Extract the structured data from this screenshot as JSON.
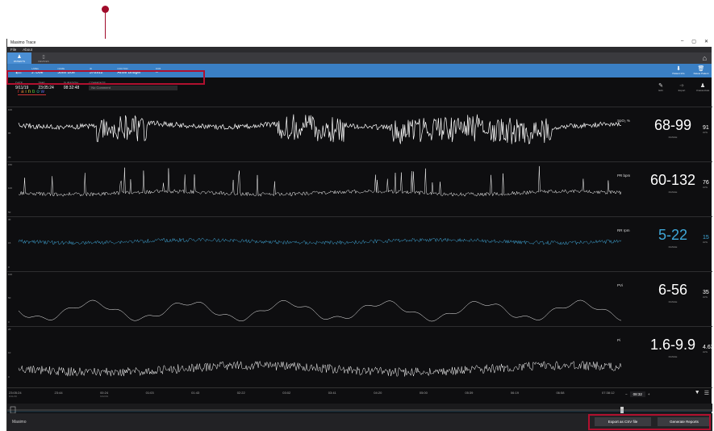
{
  "window": {
    "title": "Masimo Trace",
    "minimize": "–",
    "maximize": "▢",
    "close": "✕"
  },
  "menu": [
    "File",
    "About"
  ],
  "nav": {
    "tabs": [
      {
        "label": "PATIENTS",
        "icon": "person-icon"
      },
      {
        "label": "DEVICES",
        "icon": "device-icon"
      }
    ],
    "home_icon": "home-icon"
  },
  "patient": {
    "back_icon": "arrow-left-icon",
    "fields": [
      {
        "label": "LABEL",
        "value": "J. Doe"
      },
      {
        "label": "NAME",
        "value": "John Doe"
      },
      {
        "label": "ID",
        "value": "378912"
      },
      {
        "label": "DOCTOR",
        "value": "Anne Bridger"
      },
      {
        "label": "DOB",
        "value": "--"
      }
    ],
    "buttons": [
      {
        "label": "Patient Info",
        "icon": "download-icon"
      },
      {
        "label": "Delete Patient",
        "icon": "trash-icon"
      }
    ]
  },
  "session": {
    "fields": [
      {
        "label": "DATE",
        "value": "9/11/19"
      },
      {
        "label": "TIME",
        "value": "23:05:24"
      },
      {
        "label": "DURATION",
        "value": "08:32:48"
      }
    ],
    "comments_label": "COMMENTS",
    "comments_placeholder": "No Comment",
    "brand": "rainbow",
    "tools": [
      {
        "label": "Edit",
        "icon": "pencil-icon"
      },
      {
        "label": "Export",
        "icon": "export-icon"
      },
      {
        "label": "Unassociate",
        "icon": "unassociate-icon"
      }
    ]
  },
  "channels": [
    {
      "key": "spo2",
      "name": "SpO₂ %",
      "range": "68-99",
      "range_label": "RANGE",
      "avg": "91",
      "avg_label": "AVG",
      "color": "#ffffff",
      "ymax": "100",
      "ymid": "85",
      "ymin": "70"
    },
    {
      "key": "pr",
      "name": "PR bpm",
      "range": "60-132",
      "range_label": "RANGE",
      "avg": "76",
      "avg_label": "AVG",
      "color": "#ffffff",
      "ymax": "150",
      "ymid": "100",
      "ymin": "50"
    },
    {
      "key": "rr",
      "name": "RR rpm",
      "range": "5-22",
      "range_label": "RANGE",
      "avg": "15",
      "avg_label": "AVG",
      "color": "#3fa7d8",
      "ymax": "30",
      "ymid": "15",
      "ymin": "0"
    },
    {
      "key": "pvi",
      "name": "PVi",
      "range": "6-56",
      "range_label": "RANGE",
      "avg": "35",
      "avg_label": "AVG",
      "color": "#ffffff",
      "ymax": "100",
      "ymid": "50",
      "ymin": "0"
    },
    {
      "key": "pi",
      "name": "Pi",
      "range": "1.6-9.9",
      "range_label": "RANGE",
      "avg": "4.63",
      "avg_label": "AVG",
      "color": "#ffffff",
      "ymax": "20",
      "ymid": "10",
      "ymin": "0"
    }
  ],
  "timeline": {
    "ticks": [
      {
        "t": "23:05:24",
        "d": "9/11/19"
      },
      {
        "t": "23:44",
        "d": ""
      },
      {
        "t": "00:24",
        "d": "9/12/19"
      },
      {
        "t": "01:03",
        "d": ""
      },
      {
        "t": "01:43",
        "d": ""
      },
      {
        "t": "02:22",
        "d": ""
      },
      {
        "t": "03:02",
        "d": ""
      },
      {
        "t": "03:41",
        "d": ""
      },
      {
        "t": "04:20",
        "d": ""
      },
      {
        "t": "05:00",
        "d": ""
      },
      {
        "t": "05:39",
        "d": ""
      },
      {
        "t": "06:19",
        "d": ""
      },
      {
        "t": "06:58",
        "d": ""
      },
      {
        "t": "07:38:12",
        "d": ""
      }
    ],
    "zoom_value": "08:32",
    "zoom_minus": "−",
    "zoom_plus": "+",
    "filter_icon": "filter-icon",
    "menu_icon": "hamburger-icon"
  },
  "footer": {
    "logo": "Masimo",
    "export_csv": "Export as CSV file",
    "generate_reports": "Generate Reports"
  }
}
